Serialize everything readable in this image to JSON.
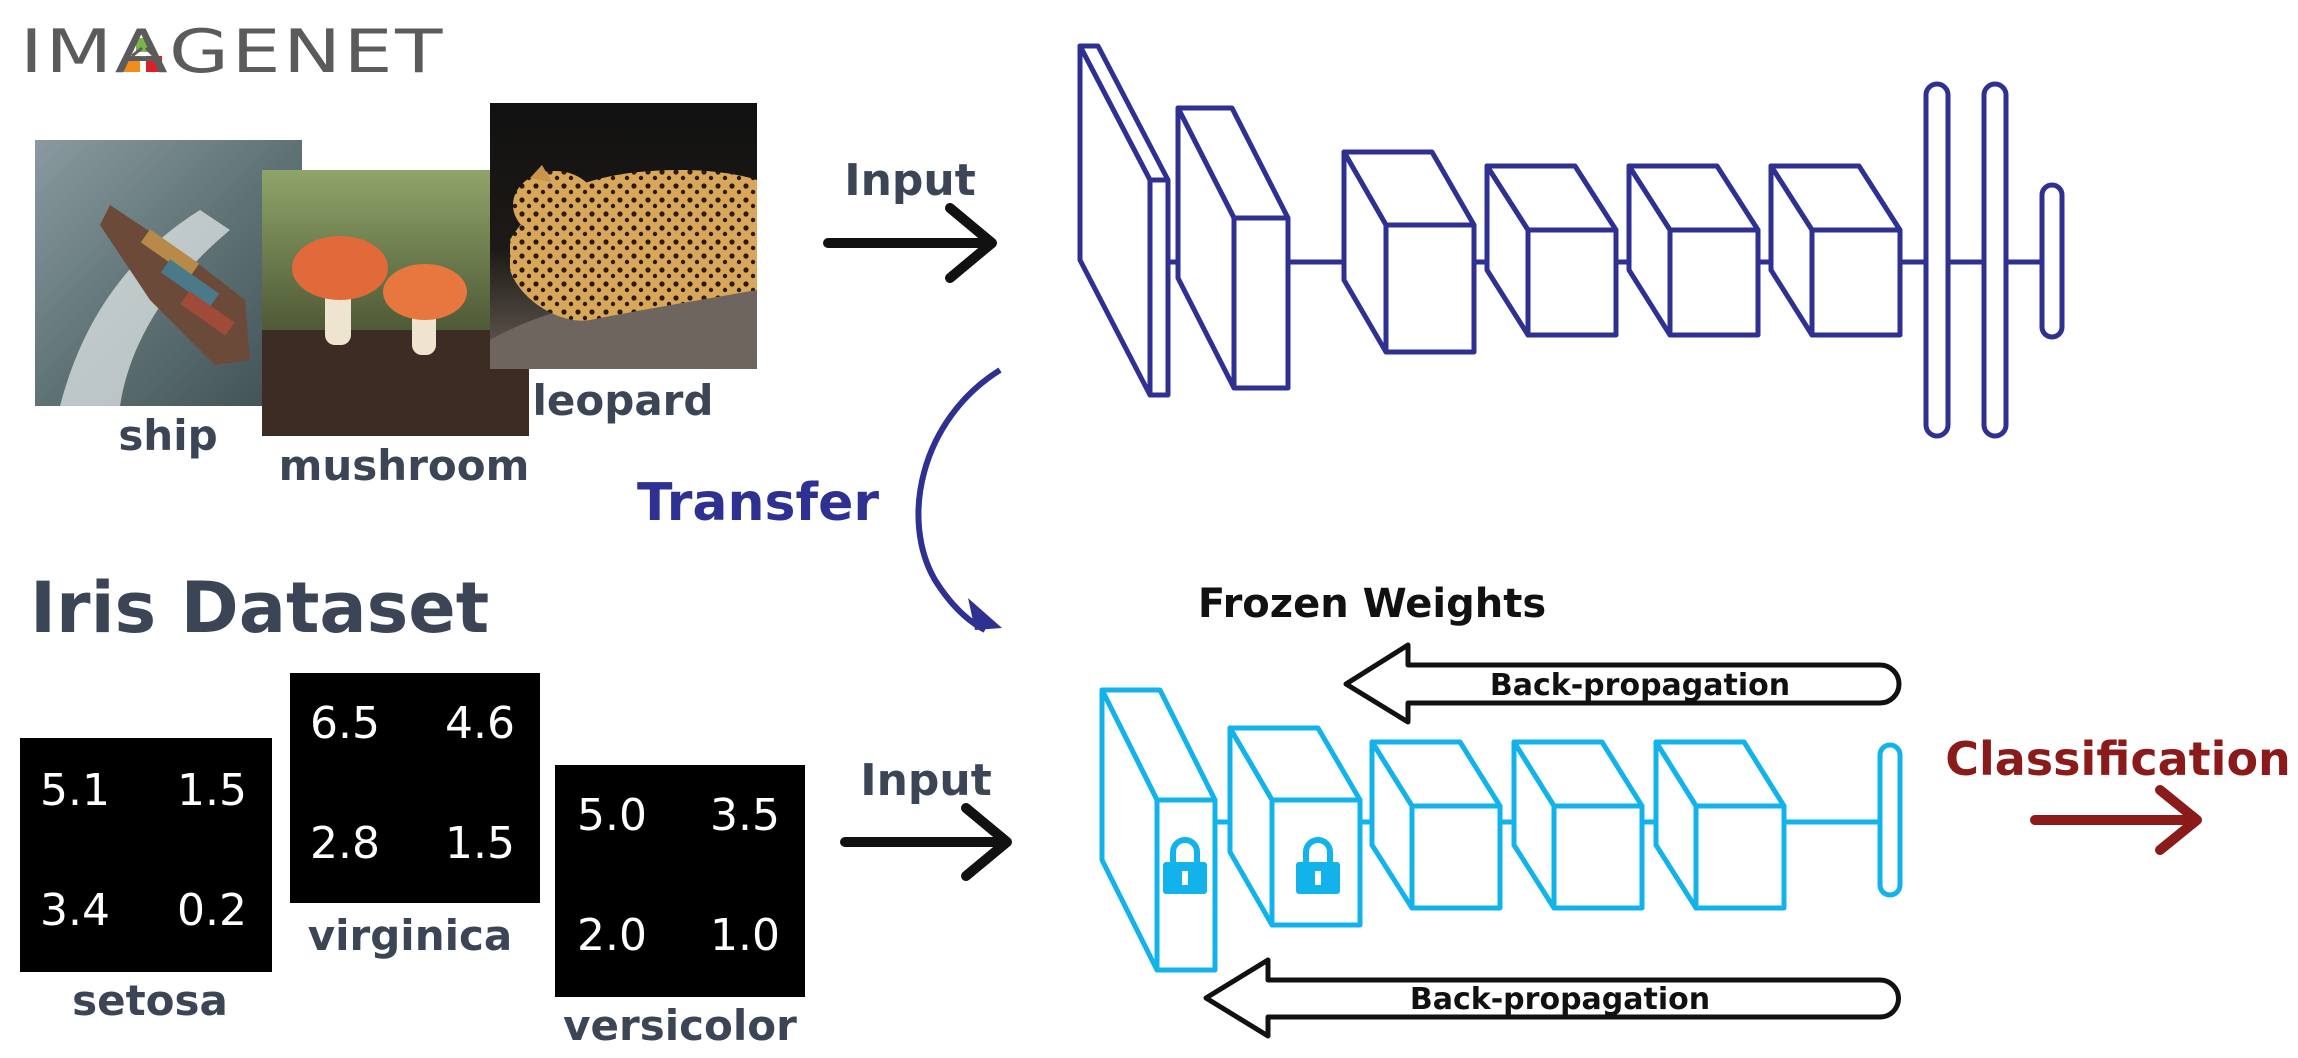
{
  "logo": {
    "text": "IMAGENET",
    "colors": {
      "letters": "#5b5b5b",
      "mark_orange": "#f28c1e",
      "mark_green": "#7ab648",
      "mark_red": "#d6232a"
    }
  },
  "imagenet_samples": [
    {
      "label": "ship"
    },
    {
      "label": "mushroom"
    },
    {
      "label": "leopard"
    }
  ],
  "top_input_label": "Input",
  "transfer_label": "Transfer",
  "iris": {
    "title": "Iris Dataset",
    "samples": [
      {
        "label": "setosa",
        "values": [
          "5.1",
          "1.5",
          "3.4",
          "0.2"
        ]
      },
      {
        "label": "virginica",
        "values": [
          "6.5",
          "4.6",
          "2.8",
          "1.5"
        ]
      },
      {
        "label": "versicolor",
        "values": [
          "5.0",
          "3.5",
          "2.0",
          "1.0"
        ]
      }
    ]
  },
  "bottom_input_label": "Input",
  "frozen_weights_label": "Frozen Weights",
  "backprop_top_label": "Back-propagation",
  "backprop_bottom_label": "Back-propagation",
  "classification_label": "Classification",
  "colors": {
    "source_network": "#2e3192",
    "target_network": "#12b3eb",
    "transfer": "#2e3192",
    "classification": "#8b1a1a",
    "text": "#3b4556",
    "arrow": "#111111"
  }
}
